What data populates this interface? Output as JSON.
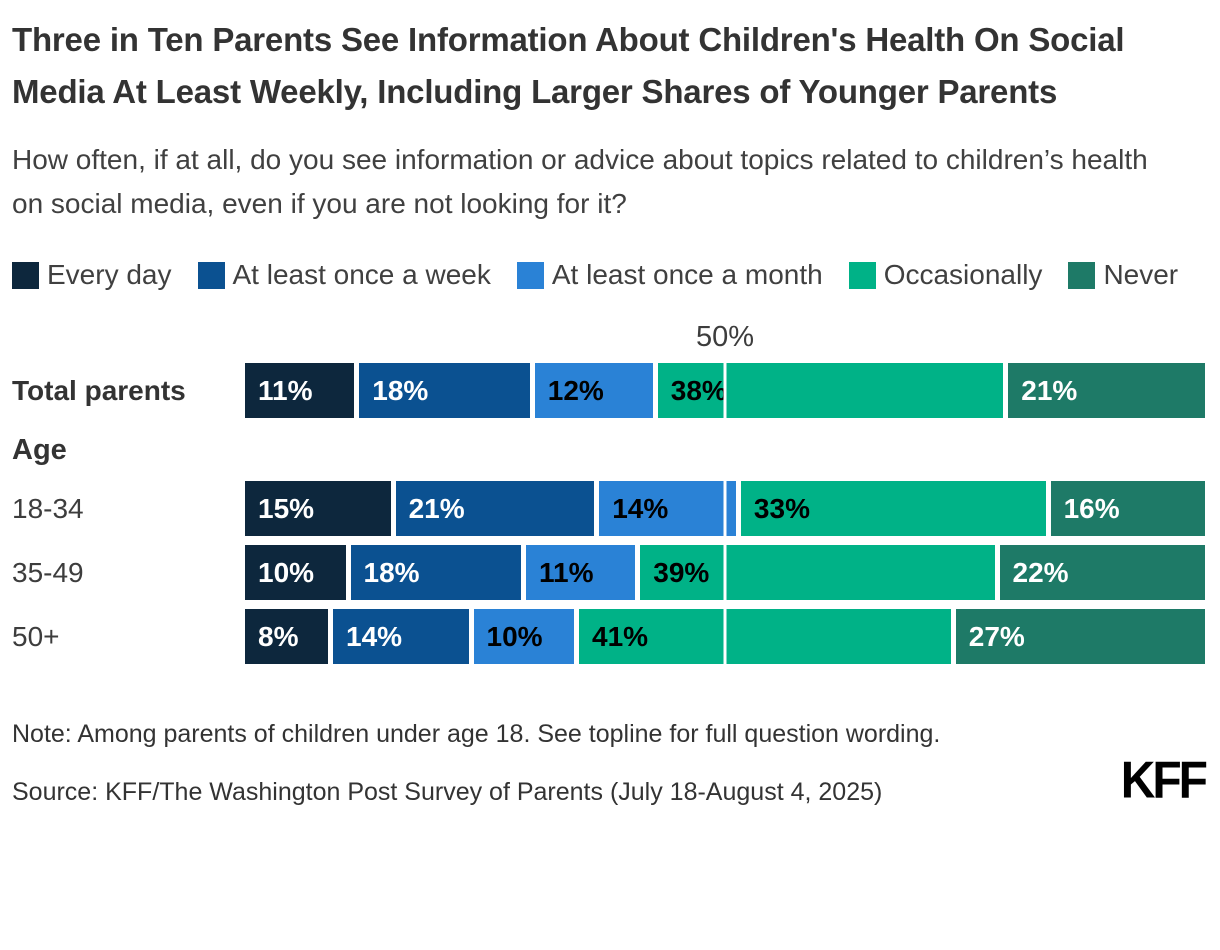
{
  "title": "Three in Ten Parents See Information About Children's Health On Social Media At Least Weekly, Including Larger Shares of Younger Parents",
  "subtitle": "How often, if at all, do you see information or advice about topics related to children’s health on social media, even if you are not looking for it?",
  "note": "Note: Among parents of children under age 18. See topline for full question wording.",
  "source": "Source: KFF/The Washington Post Survey of Parents (July 18-August 4, 2025)",
  "logo": "KFF",
  "colors": {
    "every_day": "#0D273D",
    "at_least_once_a_week": "#0B5191",
    "at_least_once_a_month": "#2A82D6",
    "occasionally": "#00B287",
    "never": "#1E7A67",
    "background": "#FFFFFF",
    "text": "#333333"
  },
  "chart_data": {
    "type": "bar",
    "stacked": true,
    "orientation": "horizontal",
    "categories": [
      "Total parents",
      "18-34",
      "35-49",
      "50+"
    ],
    "category_group": {
      "label": "Age",
      "members": [
        "18-34",
        "35-49",
        "50+"
      ]
    },
    "series": [
      {
        "name": "Every day",
        "color": "#0D273D",
        "label_color": "#FFFFFF",
        "values": [
          11,
          15,
          10,
          8
        ]
      },
      {
        "name": "At least once a week",
        "color": "#0B5191",
        "label_color": "#FFFFFF",
        "values": [
          18,
          21,
          18,
          14
        ]
      },
      {
        "name": "At least once a month",
        "color": "#2A82D6",
        "label_color": "#000000",
        "values": [
          12,
          14,
          11,
          10
        ]
      },
      {
        "name": "Occasionally",
        "color": "#00B287",
        "label_color": "#000000",
        "values": [
          38,
          33,
          39,
          41
        ]
      },
      {
        "name": "Never",
        "color": "#1E7A67",
        "label_color": "#FFFFFF",
        "values": [
          21,
          16,
          22,
          27
        ]
      }
    ],
    "value_suffix": "%",
    "axis": {
      "min": 0,
      "max": 100,
      "gridline_at": 50,
      "gridline_label": "50%"
    },
    "legend_position": "top",
    "grid": "single-line-at-50"
  }
}
